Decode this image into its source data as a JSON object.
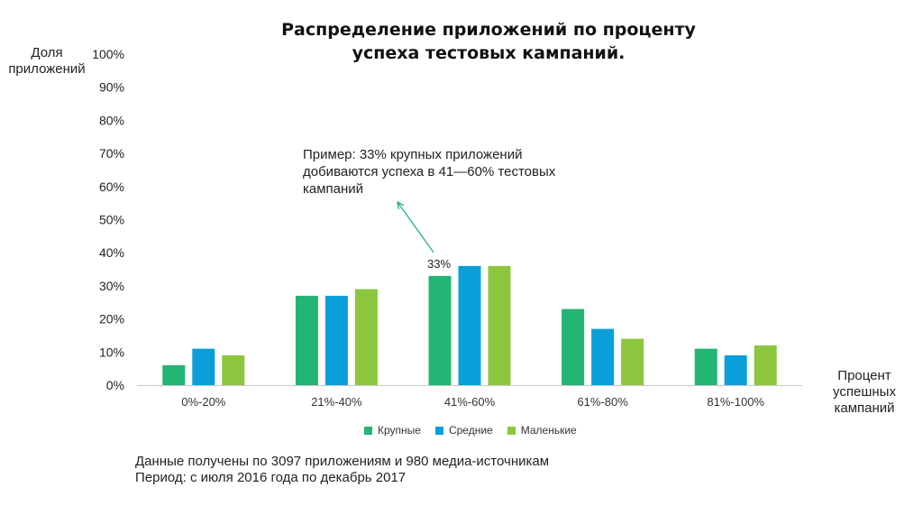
{
  "chart_data": {
    "type": "bar",
    "title": "Распределение приложений по проценту успеха тестовых кампаний.",
    "title_lines": [
      "Распределение приложений по проценту",
      "успеха тестовых кампаний."
    ],
    "ylabel": "Доля приложений",
    "ylabel_lines": [
      "Доля",
      "приложений"
    ],
    "xlabel": "Процент успешных кампаний",
    "xlabel_lines": [
      "Процент",
      "успешных",
      "кампаний"
    ],
    "categories": [
      "0%-20%",
      "21%-40%",
      "41%-60%",
      "61%-80%",
      "81%-100%"
    ],
    "series": [
      {
        "name": "Крупные",
        "color": "#23b573",
        "values": [
          6,
          27,
          33,
          23,
          11
        ]
      },
      {
        "name": "Средние",
        "color": "#0a9fd9",
        "values": [
          11,
          27,
          36,
          17,
          9
        ]
      },
      {
        "name": "Маленькие",
        "color": "#8cc63e",
        "values": [
          9,
          29,
          36,
          14,
          12
        ]
      }
    ],
    "ylim": [
      0,
      100
    ],
    "yticks": [
      "0%",
      "10%",
      "20%",
      "30%",
      "40%",
      "50%",
      "60%",
      "70%",
      "80%",
      "90%",
      "100%"
    ],
    "grid": false,
    "legend_position": "bottom",
    "data_label": {
      "series": 0,
      "category": 2,
      "text": "33%"
    },
    "annotation": {
      "lines": [
        "Пример: 33% крупных приложений",
        "добиваются успеха в 41—60% тестовых",
        "кампаний"
      ],
      "target_series": 0,
      "target_category": 2,
      "arrow_color": "#23b573"
    }
  },
  "footnote": {
    "line1": "Данные получены по 3097 приложениям и 980 медиа-источникам",
    "line2": "Период: с июля 2016 года по декабрь 2017"
  }
}
